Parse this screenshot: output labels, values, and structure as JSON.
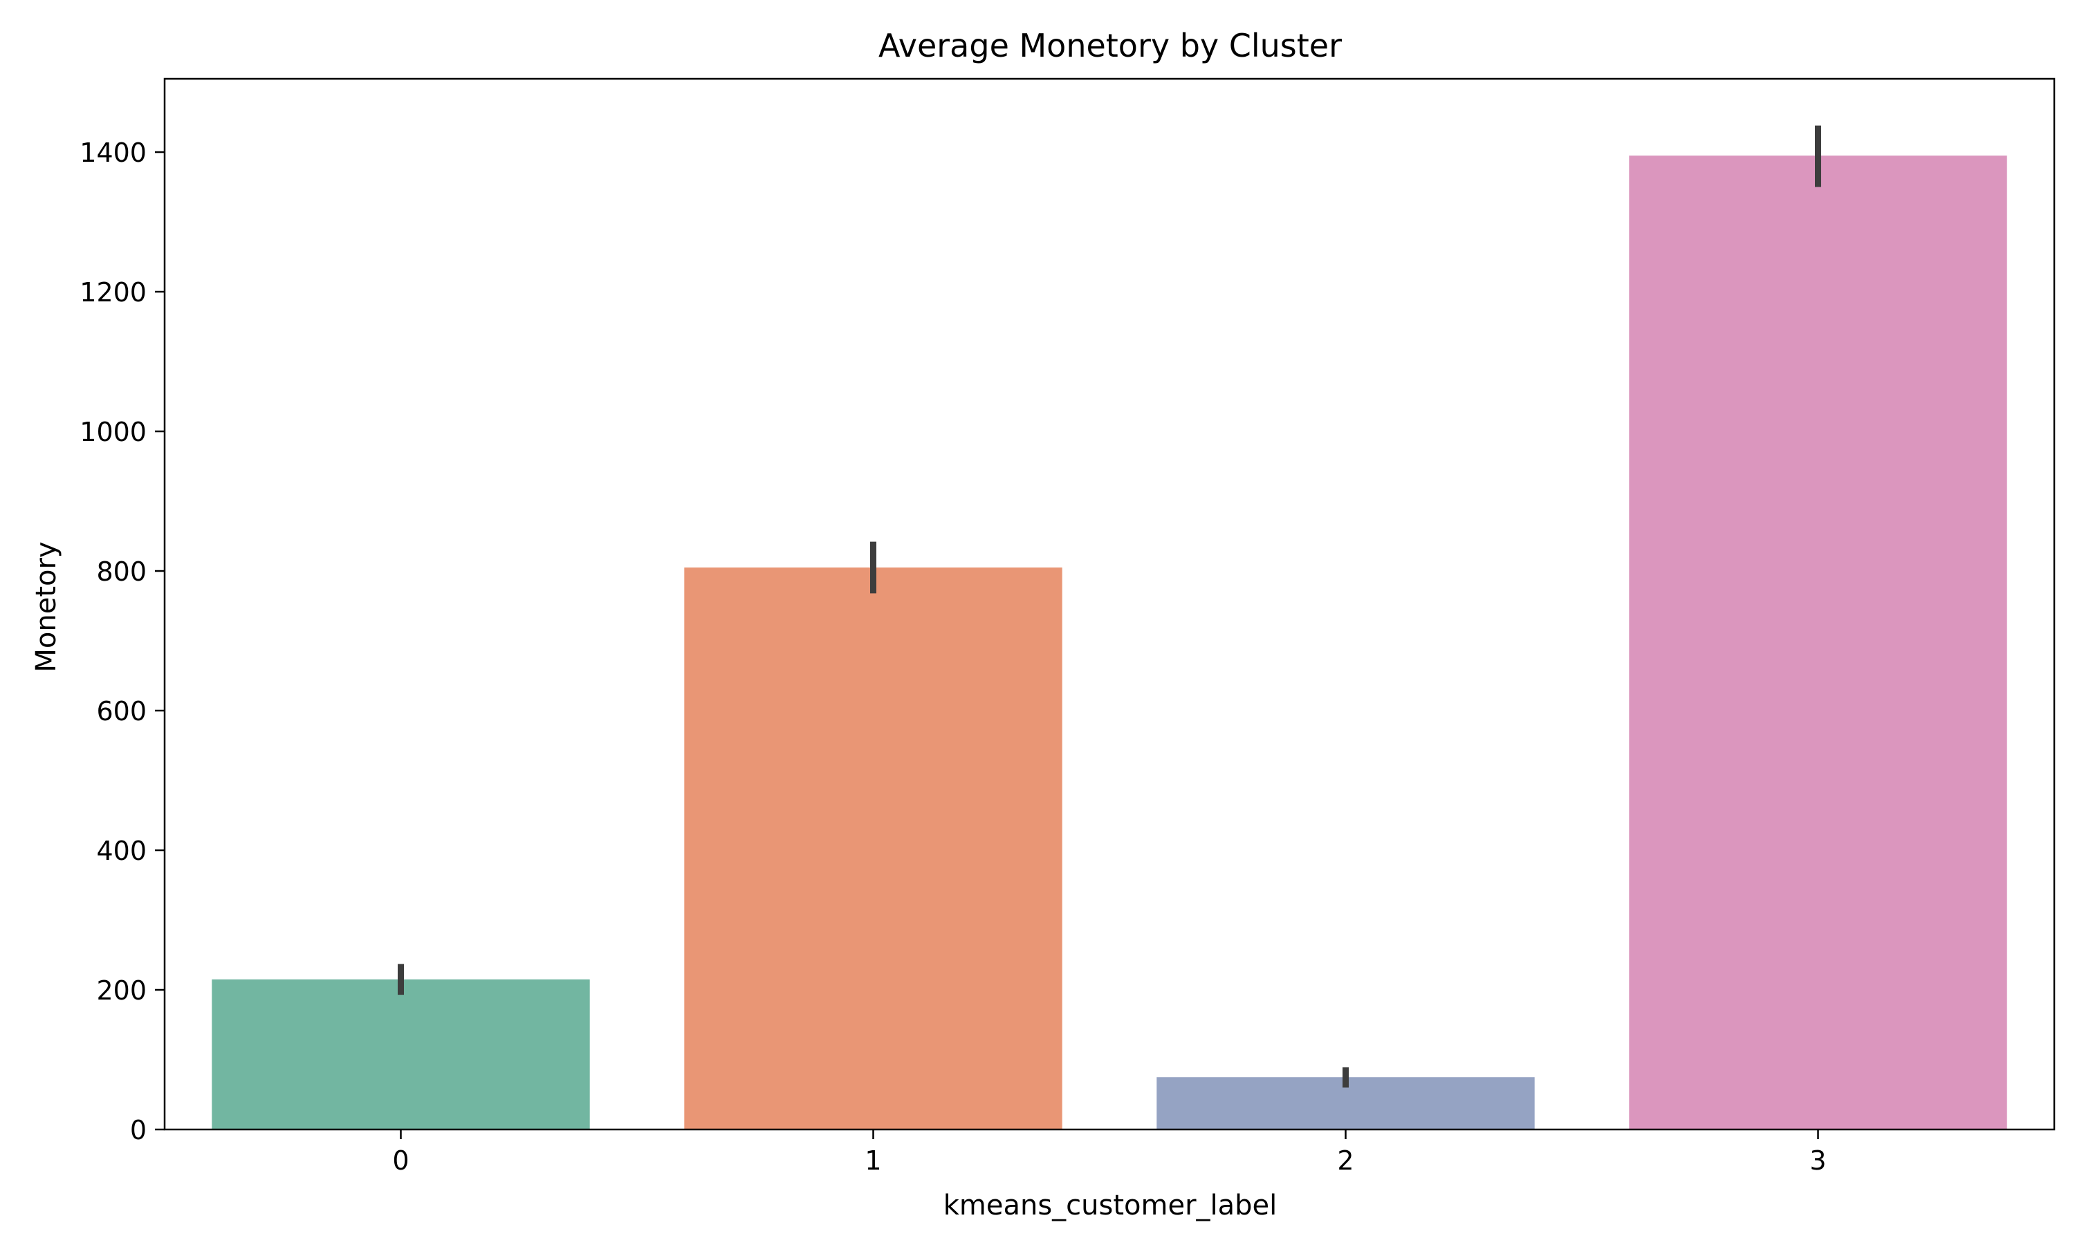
{
  "chart_data": {
    "type": "bar",
    "title": "Average Monetory by Cluster",
    "xlabel": "kmeans_customer_label",
    "ylabel": "Monetory",
    "categories": [
      "0",
      "1",
      "2",
      "3"
    ],
    "values": [
      215,
      805,
      75,
      1395
    ],
    "error_bars": [
      {
        "low": 193,
        "high": 237
      },
      {
        "low": 768,
        "high": 842
      },
      {
        "low": 60,
        "high": 89
      },
      {
        "low": 1350,
        "high": 1438
      }
    ],
    "colors": [
      "#72b6a1",
      "#e99675",
      "#95a3c3",
      "#db96be"
    ],
    "errorbar_color": "#3d3d3d",
    "ylim": [
      0,
      1505
    ],
    "yticks": [
      0,
      200,
      400,
      600,
      800,
      1000,
      1200,
      1400
    ],
    "grid": false,
    "legend": "none"
  }
}
